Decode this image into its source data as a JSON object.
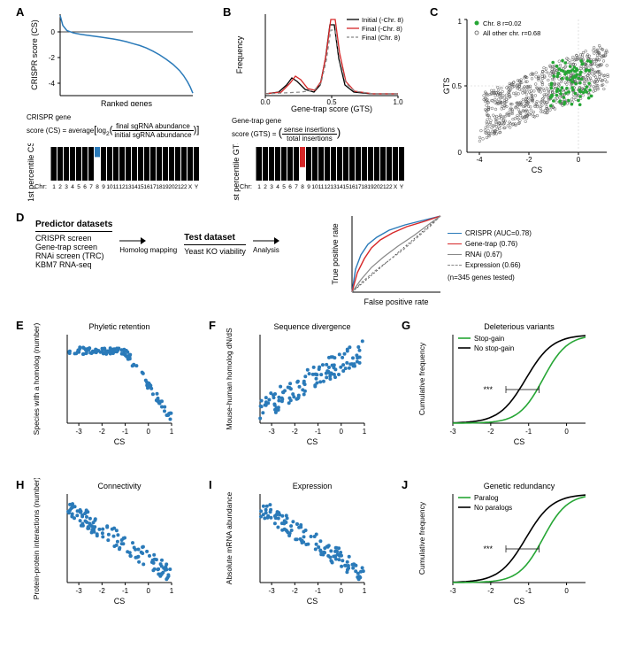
{
  "panels": {
    "A": {
      "label": "A",
      "top_chart": {
        "type": "line",
        "ylabel": "CRISPR score (CS)",
        "xlabel": "Ranked genes",
        "ylim": [
          -5,
          1.5
        ],
        "yticks": [
          -4,
          -2,
          0
        ],
        "line_color": "#2a7ab9",
        "curve": [
          [
            0,
            1.4
          ],
          [
            0.02,
            0.6
          ],
          [
            0.05,
            0.2
          ],
          [
            0.1,
            0.0
          ],
          [
            0.15,
            -0.1
          ],
          [
            0.2,
            -0.18
          ],
          [
            0.25,
            -0.25
          ],
          [
            0.3,
            -0.32
          ],
          [
            0.35,
            -0.4
          ],
          [
            0.4,
            -0.48
          ],
          [
            0.45,
            -0.58
          ],
          [
            0.5,
            -0.7
          ],
          [
            0.55,
            -0.85
          ],
          [
            0.6,
            -1.0
          ],
          [
            0.65,
            -1.2
          ],
          [
            0.7,
            -1.45
          ],
          [
            0.75,
            -1.75
          ],
          [
            0.8,
            -2.1
          ],
          [
            0.85,
            -2.5
          ],
          [
            0.9,
            -3.0
          ],
          [
            0.93,
            -3.4
          ],
          [
            0.96,
            -3.9
          ],
          [
            0.98,
            -4.3
          ],
          [
            1.0,
            -4.8
          ]
        ]
      },
      "formula": "CRISPR gene score (CS) = average[log₂(final sgRNA abundance / initial sgRNA abundance)]",
      "bar_chart": {
        "type": "bar",
        "ylabel": "1st percentile CS",
        "xlabel": "Chr:",
        "categories": [
          "1",
          "2",
          "3",
          "4",
          "5",
          "6",
          "7",
          "8",
          "9",
          "10",
          "11",
          "12",
          "13",
          "14",
          "15",
          "16",
          "17",
          "18",
          "19",
          "20",
          "21",
          "22",
          "X",
          "Y"
        ],
        "values": [
          -1,
          -1,
          -1,
          -1,
          -1,
          -1,
          -1,
          -0.3,
          -1,
          -1,
          -1,
          -1,
          -1,
          -1,
          -1,
          -1,
          -1,
          -1,
          -1,
          -1,
          -1,
          -1,
          -1,
          -1
        ],
        "bar_color": "#000000",
        "highlight_index": 7,
        "highlight_color": "#2a7ab9"
      }
    },
    "B": {
      "label": "B",
      "top_chart": {
        "type": "line",
        "ylabel": "Frequency",
        "xlabel": "Gene-trap score (GTS)",
        "xlim": [
          0,
          1
        ],
        "xticks": [
          0.0,
          0.5,
          1.0
        ],
        "series": [
          {
            "name": "Initial (-Chr. 8)",
            "color": "#000000",
            "dash": "none"
          },
          {
            "name": "Final (-Chr. 8)",
            "color": "#d62728",
            "dash": "none"
          },
          {
            "name": "Final (Chr. 8)",
            "color": "#888888",
            "dash": "4,3"
          }
        ],
        "peak_x": 0.5
      },
      "formula": "Gene-trap gene score (GTS) = (sense insertions / total insertions)",
      "bar_chart": {
        "type": "bar",
        "ylabel": "1st percentile GTS",
        "xlabel": "Chr:",
        "categories": [
          "1",
          "2",
          "3",
          "4",
          "5",
          "6",
          "7",
          "8",
          "9",
          "10",
          "11",
          "12",
          "13",
          "14",
          "15",
          "16",
          "17",
          "18",
          "19",
          "20",
          "21",
          "22",
          "X",
          "Y"
        ],
        "values": [
          -1,
          -1,
          -1,
          -1,
          -1,
          -1,
          -1,
          -0.6,
          -1,
          -1,
          -1,
          -1,
          -1,
          -1,
          -1,
          -1,
          -1,
          -1,
          -1,
          -1,
          -1,
          -1,
          -1,
          -1
        ],
        "bar_color": "#000000",
        "highlight_index": 7,
        "highlight_color": "#d62728"
      }
    },
    "C": {
      "label": "C",
      "chart": {
        "type": "scatter",
        "xlabel": "CS",
        "ylabel": "GTS",
        "xlim": [
          -4.5,
          1
        ],
        "ylim": [
          0,
          1
        ],
        "legend": [
          {
            "label": "Chr. 8 r=0.02",
            "color": "#26a635",
            "marker": "circle"
          },
          {
            "label": "All other chr. r=0.68",
            "color": "#555555",
            "marker": "circle"
          }
        ],
        "marker_size": 1.8,
        "gridline_color": "#cccccc"
      }
    },
    "D": {
      "label": "D",
      "predictor_heading": "Predictor datasets",
      "predictor_items": [
        "CRISPR screen",
        "Gene-trap screen",
        "RNAi screen (TRC)",
        "KBM7 RNA-seq"
      ],
      "arrow1": "Homolog mapping",
      "test_heading": "Test dataset",
      "test_item": "Yeast KO viability",
      "arrow2": "Analysis",
      "roc": {
        "type": "line",
        "xlabel": "False positive rate",
        "ylabel": "True positive rate",
        "series": [
          {
            "name": "CRISPR (AUC=0.78)",
            "color": "#2a7ab9",
            "dash": "none"
          },
          {
            "name": "Gene-trap (0.76)",
            "color": "#d62728",
            "dash": "none"
          },
          {
            "name": "RNAi (0.67)",
            "color": "#888888",
            "dash": "none"
          },
          {
            "name": "Expression (0.66)",
            "color": "#888888",
            "dash": "3,2"
          }
        ],
        "footnote": "(n=345 genes tested)"
      }
    },
    "E": {
      "label": "E",
      "title": "Phyletic retention",
      "xlabel": "CS",
      "ylabel": "Species with a homolog (number)",
      "xlim": [
        -3.5,
        1
      ],
      "color": "#2a7ab9",
      "type": "scatter"
    },
    "F": {
      "label": "F",
      "title": "Sequence divergence",
      "xlabel": "CS",
      "ylabel": "Mouse-human homolog dN/dS",
      "xlim": [
        -3.5,
        1
      ],
      "color": "#2a7ab9",
      "type": "scatter"
    },
    "G": {
      "label": "G",
      "title": "Deleterious variants",
      "xlabel": "CS",
      "ylabel": "Cumulative frequency",
      "xlim": [
        -3,
        0.5
      ],
      "series": [
        {
          "name": "Stop-gain",
          "color": "#26a635"
        },
        {
          "name": "No stop-gain",
          "color": "#000000"
        }
      ],
      "sig": "***",
      "type": "line"
    },
    "H": {
      "label": "H",
      "title": "Connectivity",
      "xlabel": "CS",
      "ylabel": "Protein-protein interactions (number)",
      "xlim": [
        -3.5,
        1
      ],
      "color": "#2a7ab9",
      "type": "scatter"
    },
    "I": {
      "label": "I",
      "title": "Expression",
      "xlabel": "CS",
      "ylabel": "Absolute mRNA abundance",
      "xlim": [
        -3.5,
        1
      ],
      "color": "#2a7ab9",
      "type": "scatter"
    },
    "J": {
      "label": "J",
      "title": "Genetic redundancy",
      "xlabel": "CS",
      "ylabel": "Cumulative frequency",
      "xlim": [
        -3,
        0.5
      ],
      "series": [
        {
          "name": "Paralog",
          "color": "#26a635"
        },
        {
          "name": "No paralogs",
          "color": "#000000"
        }
      ],
      "sig": "***",
      "type": "line"
    }
  },
  "colors": {
    "blue": "#2a7ab9",
    "red": "#d62728",
    "green": "#26a635",
    "gray": "#888888",
    "black": "#000000",
    "bg": "#ffffff"
  }
}
